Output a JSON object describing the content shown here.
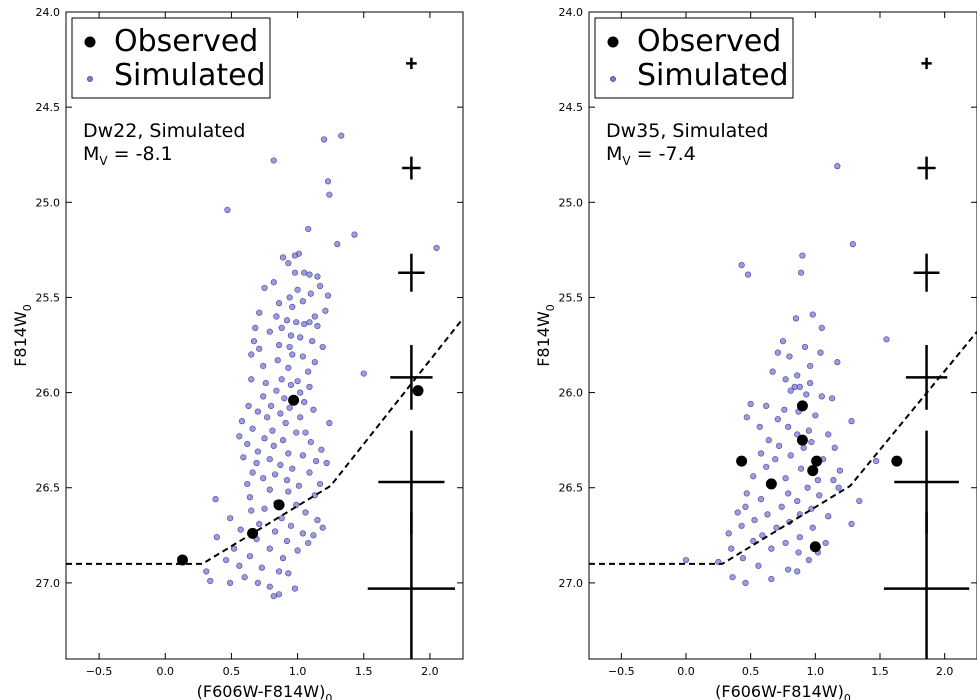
{
  "chart_data": [
    {
      "type": "scatter",
      "panel": "left",
      "xlabel": "(F606W-F814W)",
      "xlabel_sub": "0",
      "ylabel": "F814W",
      "ylabel_sub": "0",
      "xlim": [
        -0.75,
        2.25
      ],
      "ylim": [
        27.4,
        24.0
      ],
      "xticks": [
        -0.5,
        0.0,
        0.5,
        1.0,
        1.5,
        2.0
      ],
      "xtick_labels": [
        "−0.5",
        "0.0",
        "0.5",
        "1.0",
        "1.5",
        "2.0"
      ],
      "yticks": [
        24.0,
        24.5,
        25.0,
        25.5,
        26.0,
        26.5,
        27.0
      ],
      "ytick_labels": [
        "24.0",
        "24.5",
        "25.0",
        "25.5",
        "26.0",
        "26.5",
        "27.0"
      ],
      "legend": {
        "placement": "top-left",
        "entries": [
          {
            "label": "Observed",
            "marker": "large-black-dot"
          },
          {
            "label": "Simulated",
            "marker": "small-blue-dot"
          }
        ]
      },
      "annotation": {
        "line1": "Dw22, Simulated",
        "line2_prefix": "M",
        "line2_sub": "V",
        "line2_suffix": " = -8.1"
      },
      "colors": {
        "observed": "#000000",
        "simulated_fill": "#7b7bd0",
        "simulated_edge": "#1f1f8f"
      },
      "observed": [
        {
          "x": 0.13,
          "y": 26.88
        },
        {
          "x": 0.66,
          "y": 26.74
        },
        {
          "x": 0.86,
          "y": 26.59
        },
        {
          "x": 0.97,
          "y": 26.04
        },
        {
          "x": 1.91,
          "y": 25.99
        }
      ],
      "simulated": [
        [
          0.82,
          24.78
        ],
        [
          1.2,
          24.67
        ],
        [
          1.33,
          24.65
        ],
        [
          1.23,
          24.89
        ],
        [
          1.24,
          24.96
        ],
        [
          0.47,
          25.04
        ],
        [
          1.08,
          25.14
        ],
        [
          1.43,
          25.17
        ],
        [
          1.3,
          25.22
        ],
        [
          2.05,
          25.24
        ],
        [
          1.01,
          25.27
        ],
        [
          0.98,
          25.28
        ],
        [
          0.89,
          25.29
        ],
        [
          0.93,
          25.32
        ],
        [
          1.05,
          25.37
        ],
        [
          0.98,
          25.37
        ],
        [
          1.09,
          25.38
        ],
        [
          1.15,
          25.39
        ],
        [
          0.82,
          25.42
        ],
        [
          1.17,
          25.44
        ],
        [
          0.75,
          25.45
        ],
        [
          1.0,
          25.46
        ],
        [
          1.1,
          25.48
        ],
        [
          1.23,
          25.49
        ],
        [
          0.94,
          25.5
        ],
        [
          0.86,
          25.53
        ],
        [
          1.04,
          25.52
        ],
        [
          0.96,
          25.55
        ],
        [
          0.71,
          25.58
        ],
        [
          1.21,
          25.57
        ],
        [
          0.84,
          25.6
        ],
        [
          1.13,
          25.6
        ],
        [
          0.92,
          25.62
        ],
        [
          0.99,
          25.63
        ],
        [
          1.05,
          25.64
        ],
        [
          1.09,
          25.63
        ],
        [
          0.68,
          25.66
        ],
        [
          0.88,
          25.66
        ],
        [
          1.15,
          25.65
        ],
        [
          0.79,
          25.68
        ],
        [
          0.95,
          25.7
        ],
        [
          1.02,
          25.71
        ],
        [
          0.67,
          25.73
        ],
        [
          1.11,
          25.73
        ],
        [
          0.86,
          25.75
        ],
        [
          1.19,
          25.76
        ],
        [
          0.71,
          25.77
        ],
        [
          0.94,
          25.76
        ],
        [
          0.65,
          25.8
        ],
        [
          0.96,
          25.8
        ],
        [
          1.04,
          25.81
        ],
        [
          0.85,
          25.83
        ],
        [
          1.13,
          25.84
        ],
        [
          0.74,
          25.86
        ],
        [
          0.93,
          25.87
        ],
        [
          1.08,
          25.89
        ],
        [
          1.5,
          25.9
        ],
        [
          0.65,
          25.93
        ],
        [
          0.88,
          25.93
        ],
        [
          1.0,
          25.94
        ],
        [
          0.76,
          25.95
        ],
        [
          0.95,
          25.96
        ],
        [
          1.09,
          25.97
        ],
        [
          0.84,
          25.99
        ],
        [
          1.02,
          26.0
        ],
        [
          0.74,
          26.02
        ],
        [
          0.9,
          26.03
        ],
        [
          1.05,
          26.05
        ],
        [
          0.63,
          26.07
        ],
        [
          0.8,
          26.07
        ],
        [
          0.94,
          26.08
        ],
        [
          1.12,
          26.09
        ],
        [
          0.7,
          26.1
        ],
        [
          0.87,
          26.11
        ],
        [
          0.77,
          26.13
        ],
        [
          1.02,
          26.13
        ],
        [
          0.58,
          26.15
        ],
        [
          0.91,
          26.16
        ],
        [
          1.24,
          26.16
        ],
        [
          0.66,
          26.19
        ],
        [
          0.81,
          26.2
        ],
        [
          0.99,
          26.21
        ],
        [
          1.06,
          26.21
        ],
        [
          0.56,
          26.23
        ],
        [
          0.75,
          26.24
        ],
        [
          0.89,
          26.25
        ],
        [
          1.1,
          26.26
        ],
        [
          0.62,
          26.27
        ],
        [
          0.82,
          26.28
        ],
        [
          1.18,
          26.3
        ],
        [
          0.7,
          26.31
        ],
        [
          0.93,
          26.32
        ],
        [
          1.04,
          26.33
        ],
        [
          0.59,
          26.34
        ],
        [
          0.79,
          26.35
        ],
        [
          1.14,
          26.36
        ],
        [
          0.69,
          26.37
        ],
        [
          0.87,
          26.38
        ],
        [
          1.22,
          26.37
        ],
        [
          0.96,
          26.4
        ],
        [
          0.66,
          26.42
        ],
        [
          0.83,
          26.43
        ],
        [
          1.09,
          26.42
        ],
        [
          0.74,
          26.45
        ],
        [
          0.92,
          26.46
        ],
        [
          0.62,
          26.48
        ],
        [
          1.01,
          26.49
        ],
        [
          1.17,
          26.48
        ],
        [
          0.79,
          26.51
        ],
        [
          0.93,
          26.52
        ],
        [
          0.64,
          26.55
        ],
        [
          1.13,
          26.54
        ],
        [
          0.38,
          26.56
        ],
        [
          0.84,
          26.58
        ],
        [
          0.99,
          26.59
        ],
        [
          0.65,
          26.62
        ],
        [
          0.75,
          26.61
        ],
        [
          1.06,
          26.63
        ],
        [
          0.49,
          26.66
        ],
        [
          0.88,
          26.66
        ],
        [
          1.15,
          26.67
        ],
        [
          0.71,
          26.69
        ],
        [
          0.95,
          26.7
        ],
        [
          1.19,
          26.71
        ],
        [
          0.57,
          26.72
        ],
        [
          0.83,
          26.73
        ],
        [
          1.04,
          26.74
        ],
        [
          1.12,
          26.75
        ],
        [
          0.39,
          26.76
        ],
        [
          0.69,
          26.77
        ],
        [
          0.92,
          26.78
        ],
        [
          1.08,
          26.79
        ],
        [
          0.52,
          26.82
        ],
        [
          0.79,
          26.82
        ],
        [
          1.0,
          26.83
        ],
        [
          0.64,
          26.86
        ],
        [
          0.89,
          26.87
        ],
        [
          0.46,
          26.88
        ],
        [
          0.56,
          26.91
        ],
        [
          0.73,
          26.92
        ],
        [
          0.31,
          26.94
        ],
        [
          0.86,
          26.94
        ],
        [
          0.93,
          26.95
        ],
        [
          0.6,
          26.97
        ],
        [
          0.34,
          26.99
        ],
        [
          0.49,
          27.0
        ],
        [
          0.7,
          27.0
        ],
        [
          0.79,
          27.02
        ],
        [
          0.98,
          27.03
        ],
        [
          0.86,
          27.06
        ],
        [
          0.82,
          27.07
        ]
      ],
      "completeness_limit": [
        [
          -0.75,
          26.9
        ],
        [
          0.28,
          26.9
        ],
        [
          1.25,
          26.49
        ],
        [
          2.25,
          25.61
        ]
      ],
      "error_bars": [
        {
          "x": 1.86,
          "y": 24.27,
          "xerr": 0.04,
          "yerr": 0.03
        },
        {
          "x": 1.86,
          "y": 24.82,
          "xerr": 0.07,
          "yerr": 0.06
        },
        {
          "x": 1.86,
          "y": 25.37,
          "xerr": 0.1,
          "yerr": 0.1
        },
        {
          "x": 1.86,
          "y": 25.92,
          "xerr": 0.16,
          "yerr": 0.17
        },
        {
          "x": 1.86,
          "y": 26.47,
          "xerr": 0.25,
          "yerr": 0.27
        },
        {
          "x": 1.86,
          "y": 27.03,
          "xerr": 0.33,
          "yerr": 0.4
        }
      ]
    },
    {
      "type": "scatter",
      "panel": "right",
      "xlabel": "(F606W-F814W)",
      "xlabel_sub": "0",
      "ylabel": "F814W",
      "ylabel_sub": "0",
      "xlim": [
        -0.75,
        2.25
      ],
      "ylim": [
        27.4,
        24.0
      ],
      "xticks": [
        -0.5,
        0.0,
        0.5,
        1.0,
        1.5,
        2.0
      ],
      "xtick_labels": [
        "−0.5",
        "0.0",
        "0.5",
        "1.0",
        "1.5",
        "2.0"
      ],
      "yticks": [
        24.0,
        24.5,
        25.0,
        25.5,
        26.0,
        26.5,
        27.0
      ],
      "ytick_labels": [
        "24.0",
        "24.5",
        "25.0",
        "25.5",
        "26.0",
        "26.5",
        "27.0"
      ],
      "legend": {
        "placement": "top-left",
        "entries": [
          {
            "label": "Observed",
            "marker": "large-black-dot"
          },
          {
            "label": "Simulated",
            "marker": "small-blue-dot"
          }
        ]
      },
      "annotation": {
        "line1": "Dw35, Simulated",
        "line2_prefix": "M",
        "line2_sub": "V",
        "line2_suffix": " = -7.4"
      },
      "colors": {
        "observed": "#000000",
        "simulated_fill": "#7b7bd0",
        "simulated_edge": "#1f1f8f"
      },
      "observed": [
        {
          "x": 0.43,
          "y": 26.36
        },
        {
          "x": 0.66,
          "y": 26.48
        },
        {
          "x": 0.9,
          "y": 26.07
        },
        {
          "x": 0.9,
          "y": 26.25
        },
        {
          "x": 0.98,
          "y": 26.41
        },
        {
          "x": 1.01,
          "y": 26.36
        },
        {
          "x": 1.0,
          "y": 26.81
        },
        {
          "x": 1.63,
          "y": 26.36
        }
      ],
      "simulated": [
        [
          1.17,
          24.81
        ],
        [
          0.43,
          25.33
        ],
        [
          0.48,
          25.38
        ],
        [
          0.9,
          25.28
        ],
        [
          0.89,
          25.37
        ],
        [
          1.29,
          25.22
        ],
        [
          0.98,
          25.59
        ],
        [
          0.85,
          25.61
        ],
        [
          1.05,
          25.66
        ],
        [
          1.55,
          25.72
        ],
        [
          0.75,
          25.73
        ],
        [
          0.92,
          25.76
        ],
        [
          0.71,
          25.79
        ],
        [
          0.8,
          25.81
        ],
        [
          1.04,
          25.79
        ],
        [
          1.17,
          25.84
        ],
        [
          0.96,
          25.86
        ],
        [
          0.67,
          25.89
        ],
        [
          0.86,
          25.91
        ],
        [
          0.77,
          25.93
        ],
        [
          0.96,
          25.95
        ],
        [
          0.84,
          25.97
        ],
        [
          0.88,
          25.97
        ],
        [
          0.81,
          25.99
        ],
        [
          0.93,
          26.01
        ],
        [
          1.05,
          26.02
        ],
        [
          1.13,
          26.03
        ],
        [
          0.5,
          26.06
        ],
        [
          0.62,
          26.07
        ],
        [
          0.76,
          26.09
        ],
        [
          0.87,
          26.1
        ],
        [
          1.0,
          26.12
        ],
        [
          0.47,
          26.13
        ],
        [
          0.71,
          26.14
        ],
        [
          1.28,
          26.15
        ],
        [
          0.57,
          26.18
        ],
        [
          0.79,
          26.18
        ],
        [
          0.95,
          26.2
        ],
        [
          0.86,
          26.22
        ],
        [
          1.1,
          26.22
        ],
        [
          0.64,
          26.25
        ],
        [
          0.97,
          26.26
        ],
        [
          0.72,
          26.28
        ],
        [
          0.91,
          26.29
        ],
        [
          1.15,
          26.29
        ],
        [
          0.58,
          26.32
        ],
        [
          0.81,
          26.33
        ],
        [
          0.69,
          26.35
        ],
        [
          1.06,
          26.35
        ],
        [
          1.47,
          26.36
        ],
        [
          0.62,
          26.39
        ],
        [
          0.89,
          26.4
        ],
        [
          1.19,
          26.41
        ],
        [
          0.52,
          26.44
        ],
        [
          0.77,
          26.45
        ],
        [
          1.02,
          26.46
        ],
        [
          1.14,
          26.46
        ],
        [
          0.65,
          26.49
        ],
        [
          0.94,
          26.5
        ],
        [
          1.18,
          26.5
        ],
        [
          0.47,
          26.53
        ],
        [
          0.79,
          26.53
        ],
        [
          1.03,
          26.54
        ],
        [
          0.58,
          26.56
        ],
        [
          0.86,
          26.57
        ],
        [
          1.34,
          26.57
        ],
        [
          0.46,
          26.6
        ],
        [
          0.74,
          26.6
        ],
        [
          0.97,
          26.61
        ],
        [
          0.4,
          26.63
        ],
        [
          0.63,
          26.64
        ],
        [
          0.88,
          26.64
        ],
        [
          1.1,
          26.65
        ],
        [
          0.53,
          26.67
        ],
        [
          0.8,
          26.68
        ],
        [
          1.28,
          26.69
        ],
        [
          0.43,
          26.7
        ],
        [
          0.7,
          26.71
        ],
        [
          0.98,
          26.71
        ],
        [
          0.33,
          26.74
        ],
        [
          0.59,
          26.75
        ],
        [
          0.88,
          26.76
        ],
        [
          0.52,
          26.78
        ],
        [
          0.77,
          26.79
        ],
        [
          1.08,
          26.79
        ],
        [
          0.35,
          26.82
        ],
        [
          0.66,
          26.82
        ],
        [
          0.87,
          26.84
        ],
        [
          1.02,
          26.84
        ],
        [
          0.44,
          26.87
        ],
        [
          0.95,
          26.88
        ],
        [
          0.25,
          26.89
        ],
        [
          0.0,
          26.88
        ],
        [
          0.56,
          26.91
        ],
        [
          0.79,
          26.93
        ],
        [
          0.86,
          26.94
        ],
        [
          0.36,
          26.97
        ],
        [
          0.66,
          26.98
        ],
        [
          0.46,
          27.0
        ]
      ],
      "completeness_limit": [
        [
          -0.75,
          26.9
        ],
        [
          0.28,
          26.9
        ],
        [
          1.27,
          26.49
        ],
        [
          2.25,
          25.68
        ]
      ],
      "error_bars": [
        {
          "x": 1.86,
          "y": 24.27,
          "xerr": 0.04,
          "yerr": 0.03
        },
        {
          "x": 1.86,
          "y": 24.82,
          "xerr": 0.07,
          "yerr": 0.06
        },
        {
          "x": 1.86,
          "y": 25.37,
          "xerr": 0.1,
          "yerr": 0.1
        },
        {
          "x": 1.86,
          "y": 25.92,
          "xerr": 0.16,
          "yerr": 0.17
        },
        {
          "x": 1.86,
          "y": 26.47,
          "xerr": 0.25,
          "yerr": 0.27
        },
        {
          "x": 1.86,
          "y": 27.03,
          "xerr": 0.33,
          "yerr": 0.4
        }
      ]
    }
  ]
}
